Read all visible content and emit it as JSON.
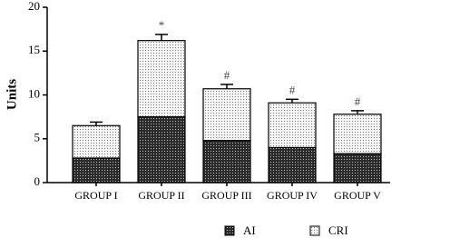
{
  "chart_data": {
    "type": "stacked_bar",
    "y_label": "Units",
    "categories": [
      "GROUP I",
      "GROUP II",
      "GROUP III",
      "GROUP IV",
      "GROUP V"
    ],
    "series": [
      {
        "name": "AI",
        "color": "#2b2b2b",
        "values": [
          2.8,
          7.5,
          4.8,
          4.0,
          3.3
        ],
        "errors": [
          0.3,
          0.7,
          0.4,
          0.3,
          0.3
        ],
        "annotations": [
          null,
          "*",
          "#",
          "#",
          "#"
        ]
      },
      {
        "name": "CRI",
        "color": "#f2f2f2",
        "values": [
          3.7,
          8.7,
          5.9,
          5.1,
          4.5
        ],
        "errors": [
          0.4,
          0.7,
          0.5,
          0.4,
          0.4
        ],
        "annotations": [
          null,
          "*",
          "#",
          "#",
          "#"
        ]
      }
    ],
    "ylim": [
      0,
      20
    ],
    "yticks": [
      0,
      5,
      10,
      15,
      20
    ],
    "legend": "bottom"
  }
}
